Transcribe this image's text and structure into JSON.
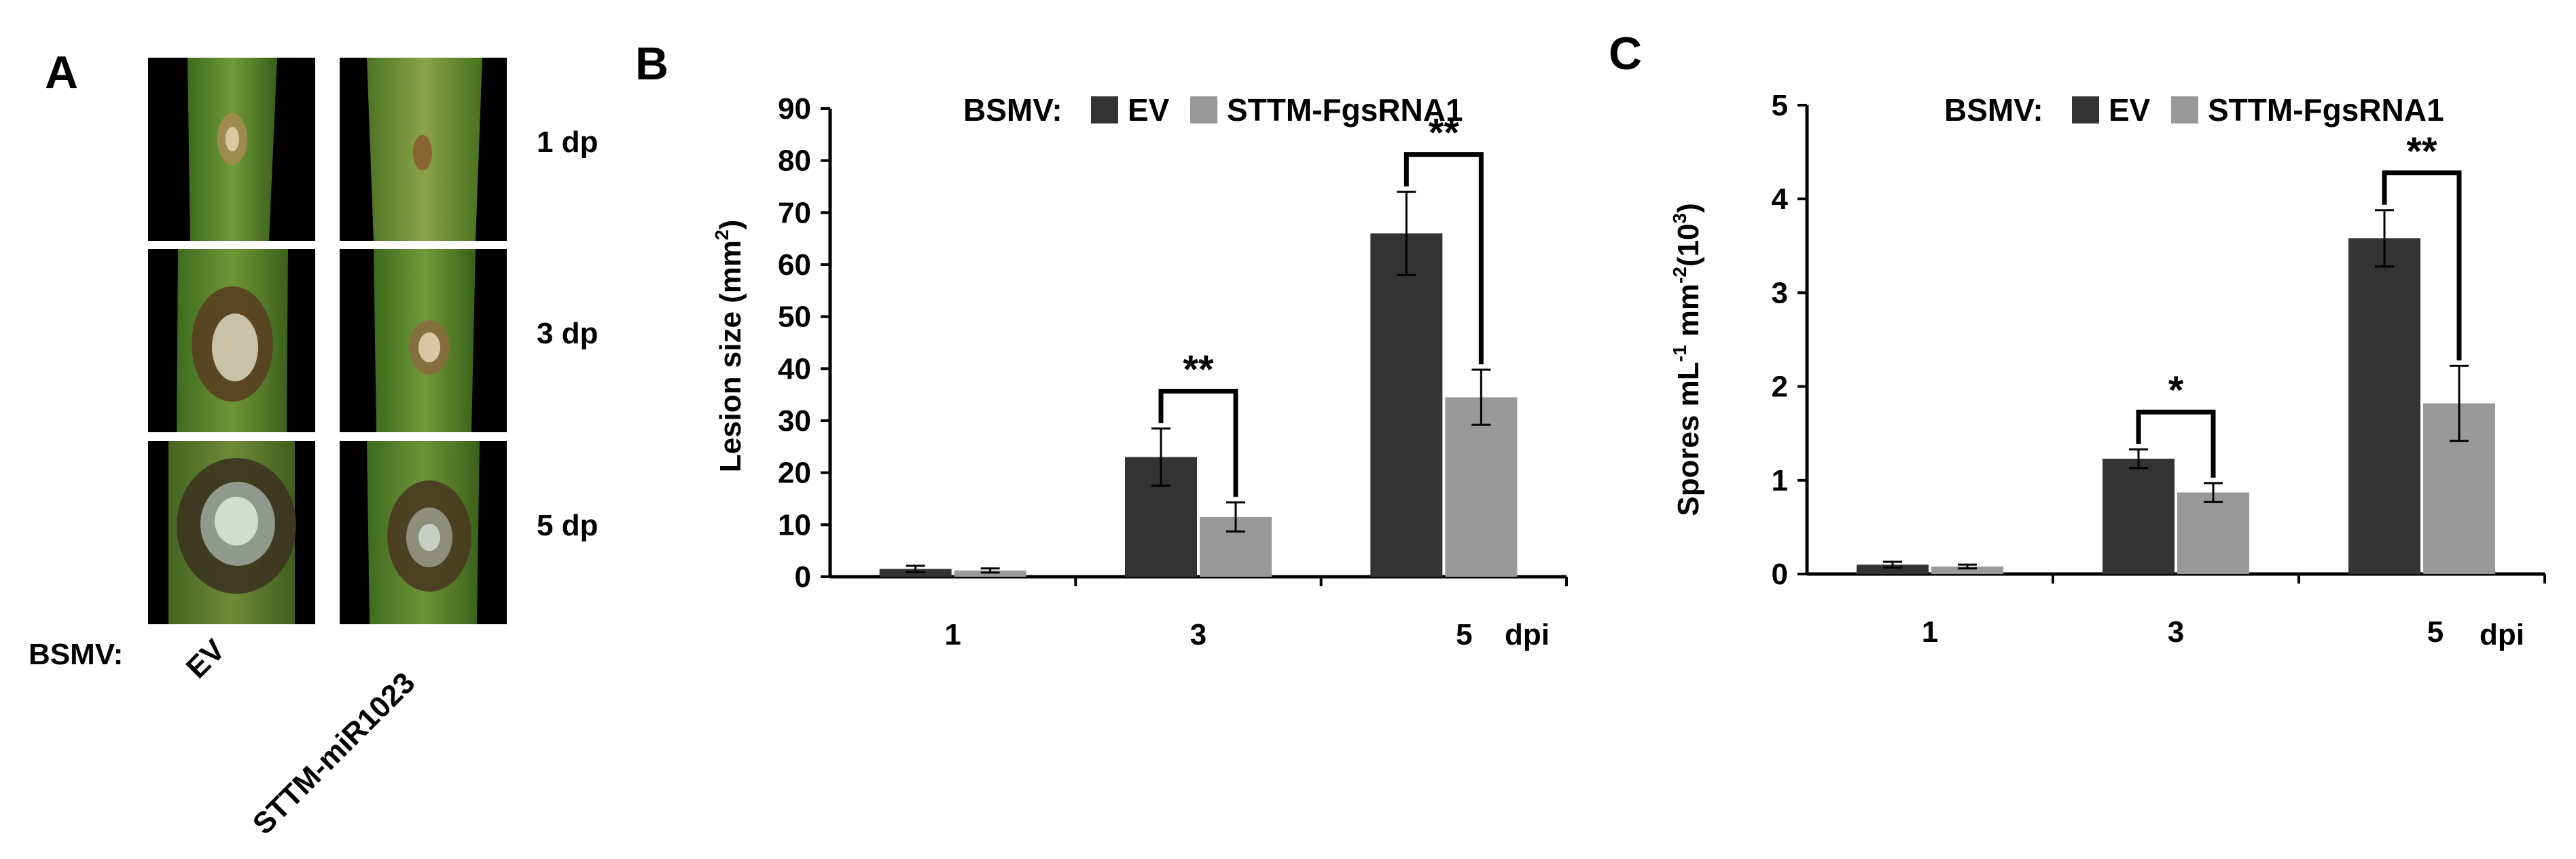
{
  "panel_a": {
    "letter": "A",
    "row_labels": [
      "1 dp",
      "3 dp",
      "5 dp"
    ],
    "group_label": "BSMV:",
    "column_labels": [
      "EV",
      "STTM-miR1023"
    ]
  },
  "colors": {
    "ev": "#333333",
    "sttm": "#999999"
  },
  "chart_data": [
    {
      "panel": "B",
      "type": "bar",
      "legend_title": "BSMV:",
      "categories": [
        "1",
        "3",
        "5"
      ],
      "x_unit_label": "dpi",
      "ylabel": "Lesion size (mm",
      "ylabel_sup": "2",
      "ylabel_end": ")",
      "ylim": [
        0,
        90
      ],
      "yticks": [
        "0",
        "10",
        "20",
        "30",
        "40",
        "50",
        "60",
        "70",
        "80",
        "90"
      ],
      "series": [
        {
          "name": "EV",
          "values": [
            1.5,
            23,
            66
          ],
          "errors": [
            0.6,
            5.5,
            8
          ]
        },
        {
          "name": "STTM-FgsRNA1",
          "values": [
            1.2,
            11.5,
            34.5
          ],
          "errors": [
            0.4,
            2.8,
            5.3
          ]
        }
      ],
      "significance": [
        "",
        "**",
        "**"
      ],
      "legend_position": "top"
    },
    {
      "panel": "C",
      "type": "bar",
      "legend_title": "BSMV:",
      "categories": [
        "1",
        "3",
        "5"
      ],
      "x_unit_label": "dpi",
      "ylabel": "Spores mL",
      "ylabel_sup": "-1",
      "ylabel_mid": " mm",
      "ylabel_sup2": "-2",
      "ylabel_mid2": "(10",
      "ylabel_sup3": "3",
      "ylabel_end": ")",
      "ylim": [
        0,
        5
      ],
      "yticks": [
        "0",
        "1",
        "2",
        "3",
        "4",
        "5"
      ],
      "series": [
        {
          "name": "EV",
          "values": [
            0.1,
            1.23,
            3.58
          ],
          "errors": [
            0.03,
            0.1,
            0.3
          ]
        },
        {
          "name": "STTM-FgsRNA1",
          "values": [
            0.08,
            0.87,
            1.82
          ],
          "errors": [
            0.02,
            0.1,
            0.4
          ]
        }
      ],
      "significance": [
        "",
        "*",
        "**"
      ],
      "legend_position": "top"
    }
  ]
}
